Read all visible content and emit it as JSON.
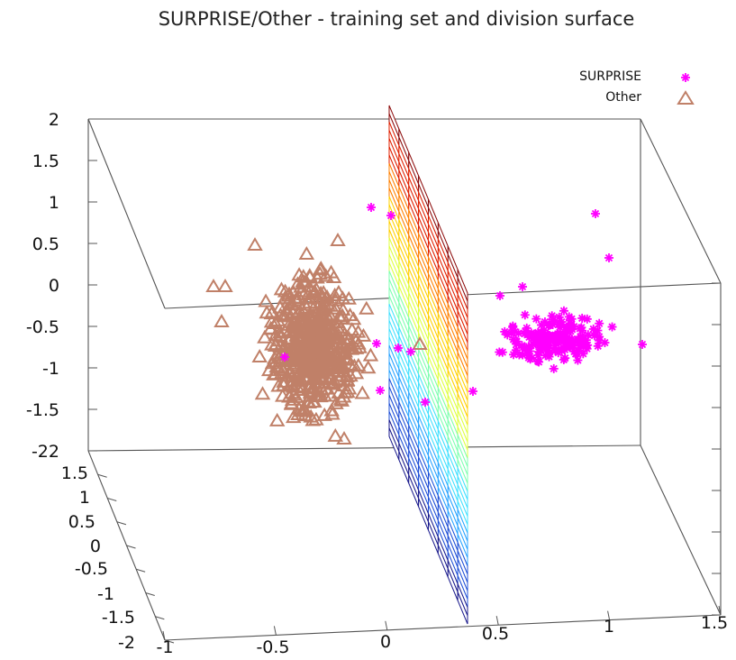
{
  "chart_data": {
    "type": "scatter",
    "title": "SURPRISE/Other - training set and division surface",
    "xlabel": "",
    "ylabel": "",
    "zlabel": "",
    "x_ticks": [
      "-1",
      "-0.5",
      "0",
      "0.5",
      "1",
      "1.5"
    ],
    "y_ticks": [
      "-2",
      "-1.5",
      "-1",
      "-0.5",
      "0",
      "0.5",
      "1",
      "1.5",
      "2"
    ],
    "z_ticks": [
      "-2",
      "-1.5",
      "-1",
      "-0.5",
      "0",
      "0.5",
      "1",
      "1.5",
      "2"
    ],
    "xlim": [
      -1,
      1.5
    ],
    "ylim": [
      -2,
      2
    ],
    "zlim": [
      -2,
      2
    ],
    "legend_position": "top-right",
    "colormap": [
      "#1a1a8c",
      "#1f4fd6",
      "#29a3ff",
      "#40e0ff",
      "#7dffb0",
      "#dfff40",
      "#ffd000",
      "#ff8000",
      "#e02000",
      "#8c0a0a"
    ],
    "series": [
      {
        "name": "SURPRISE",
        "marker": "asterisk",
        "color": "#ff00ff"
      },
      {
        "name": "Other",
        "marker": "triangle",
        "color": "#c08068"
      }
    ],
    "division_surface": {
      "type": "plane",
      "note": "vertical plane at x≈0.35, colored by height"
    }
  }
}
